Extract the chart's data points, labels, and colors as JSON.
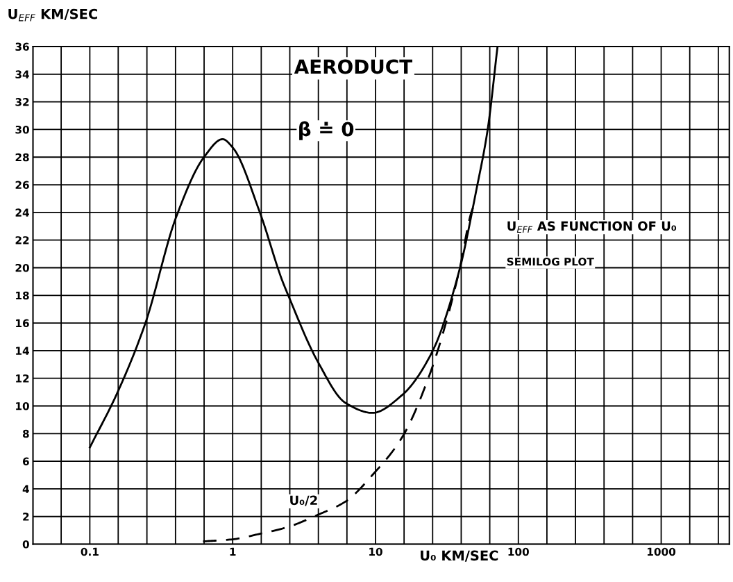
{
  "chart_data": {
    "type": "line",
    "title": "AERODUCT",
    "xlabel": "U₀ KM/SEC",
    "ylabel": "U$_{EFF}$ KM/SEC",
    "annotations": [
      "β ≐ 0",
      "U$_{EFF}$ AS FUNCTION OF U₀",
      "SEMILOG PLOT"
    ],
    "log": "x",
    "grid": true,
    "legend": false,
    "marker": "none",
    "xlim": [
      0.04,
      3000
    ],
    "ylim": [
      0,
      36
    ],
    "xticks": [
      {
        "value": 0.063,
        "label": null
      },
      0.1,
      {
        "value": 0.158,
        "label": null
      },
      {
        "value": 0.251,
        "label": null
      },
      {
        "value": 0.398,
        "label": null
      },
      {
        "value": 0.631,
        "label": null
      },
      1,
      {
        "value": 1.585,
        "label": null
      },
      {
        "value": 2.512,
        "label": null
      },
      {
        "value": 3.981,
        "label": null
      },
      {
        "value": 6.31,
        "label": null
      },
      10,
      {
        "value": 15.85,
        "label": null
      },
      {
        "value": 25.12,
        "label": null
      },
      {
        "value": 39.81,
        "label": null
      },
      {
        "value": 63.1,
        "label": null
      },
      100,
      {
        "value": 158.5,
        "label": null
      },
      {
        "value": 251.2,
        "label": null
      },
      {
        "value": 398.1,
        "label": null
      },
      {
        "value": 631,
        "label": null
      },
      1000,
      {
        "value": 1585,
        "label": null
      },
      {
        "value": 2512,
        "label": null
      }
    ],
    "yticks": [
      0,
      2,
      4,
      6,
      8,
      10,
      12,
      14,
      16,
      18,
      20,
      22,
      24,
      26,
      28,
      30,
      32,
      34,
      36
    ],
    "series": [
      {
        "color": "#000000",
        "line_style": "solid",
        "x": [
          0.1,
          0.155,
          0.245,
          0.4,
          0.63,
          0.85,
          1.0,
          1.55,
          2.2,
          2.45,
          3.9,
          6.2,
          9.5,
          15.4,
          24.9,
          38.5,
          51,
          61,
          71.5
        ],
        "values": [
          7.0,
          10.9,
          16,
          23.6,
          28,
          29.3,
          28.7,
          24,
          19.2,
          18,
          13.3,
          10.2,
          9.5,
          10.8,
          13.9,
          19.75,
          25.7,
          30,
          36
        ]
      },
      {
        "name": "U₀/2",
        "color": "#000000",
        "line_style": "dashed",
        "x": [
          0.62,
          1.0,
          1.55,
          2.45,
          3.9,
          6.2,
          9.7,
          15.4,
          24,
          31.5,
          38.5,
          48,
          50
        ],
        "values": [
          0.2,
          0.35,
          0.75,
          1.25,
          2.1,
          3.1,
          5.1,
          7.75,
          12.3,
          16.2,
          19.75,
          24.3,
          24.6
        ]
      }
    ]
  }
}
